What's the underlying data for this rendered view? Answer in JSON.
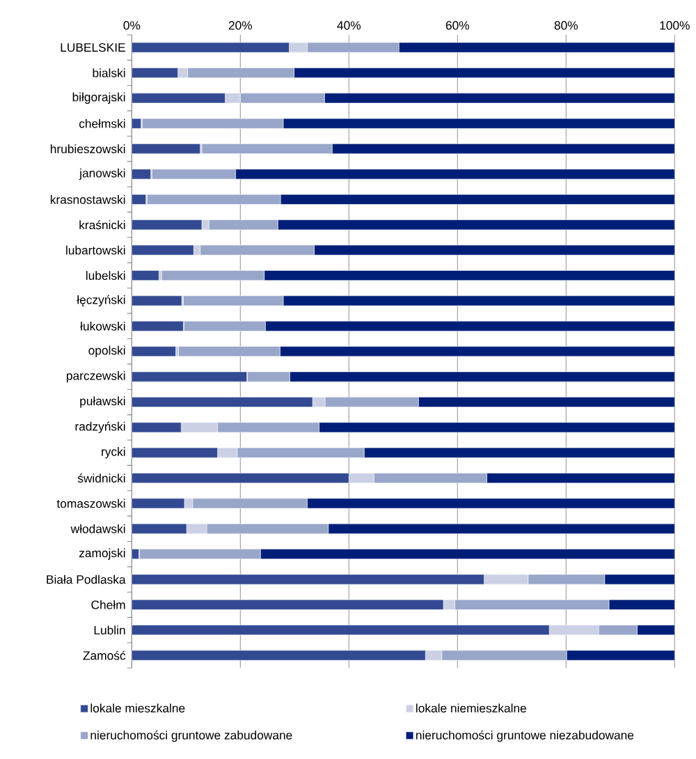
{
  "chart_data": {
    "type": "bar",
    "orientation": "horizontal",
    "stacked": true,
    "grid": "x",
    "legend": "bottom",
    "categories": [
      "LUBELSKIE",
      "bialski",
      "biłgorajski",
      "chełmski",
      "hrubieszowski",
      "janowski",
      "krasnostawski",
      "kraśnicki",
      "lubartowski",
      "lubelski",
      "łęczyński",
      "łukowski",
      "opolski",
      "parczewski",
      "puławski",
      "radzyński",
      "rycki",
      "świdnicki",
      "tomaszowski",
      "włodawski",
      "zamojski",
      "Biała Podlaska",
      "Chełm",
      "Lublin",
      "Zamość"
    ],
    "xlim": [
      0,
      100
    ],
    "xticks": [
      {
        "value": 0,
        "label": "0%"
      },
      {
        "value": 20,
        "label": "20%"
      },
      {
        "value": 40,
        "label": "40%"
      },
      {
        "value": 60,
        "label": "60%"
      },
      {
        "value": 80,
        "label": "80%"
      },
      {
        "value": 100,
        "label": "100%"
      }
    ],
    "series": [
      {
        "name": "lokale mieszkalne",
        "color": "#334a92",
        "values": [
          29.0,
          8.5,
          17.2,
          1.7,
          12.6,
          3.5,
          2.6,
          12.9,
          11.4,
          5.0,
          9.2,
          9.5,
          8.1,
          21.2,
          33.3,
          9.1,
          15.8,
          40.0,
          9.7,
          10.1,
          1.3,
          64.9,
          57.4,
          76.9,
          54.1
        ]
      },
      {
        "name": "lokale niemieszkalne",
        "color": "#cbd0e4",
        "values": [
          3.3,
          1.8,
          2.8,
          0.2,
          0.3,
          0.2,
          0.2,
          1.3,
          1.2,
          0.5,
          0.3,
          0.1,
          0.5,
          0.1,
          2.3,
          6.7,
          3.6,
          4.6,
          1.5,
          3.7,
          0.1,
          8.1,
          2.1,
          9.1,
          3.0
        ]
      },
      {
        "name": "nieruchomości gruntowe zabudowane",
        "color": "#98a6c9",
        "values": [
          16.9,
          19.6,
          15.5,
          26.0,
          24.0,
          15.4,
          24.6,
          12.7,
          21.0,
          18.9,
          18.4,
          15.0,
          18.7,
          7.8,
          17.2,
          18.7,
          23.4,
          20.8,
          21.1,
          22.4,
          22.3,
          14.1,
          28.4,
          7.1,
          23.0
        ]
      },
      {
        "name": "nieruchomości gruntowe niezabudowane",
        "color": "#001e78",
        "values": [
          50.8,
          70.1,
          64.5,
          72.1,
          63.1,
          80.9,
          72.6,
          73.1,
          66.4,
          75.6,
          72.1,
          75.4,
          72.7,
          70.9,
          47.2,
          65.5,
          57.2,
          34.6,
          67.7,
          63.8,
          76.3,
          12.9,
          12.1,
          6.9,
          19.9
        ]
      }
    ]
  }
}
